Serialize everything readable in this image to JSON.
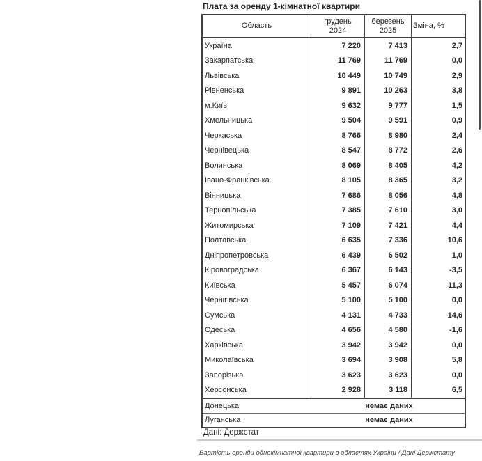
{
  "page": {
    "title": "Плата за оренду 1-кімнатної квартири",
    "source_note": "Дані: Держстат",
    "caption": "Вартість оренди однокімнатної квартири в областях України / Дані Держстату"
  },
  "colors": {
    "border": "#404040",
    "text": "#262626",
    "divider": "#c9c9c9",
    "scrollbar": "#4d4d4d"
  },
  "table": {
    "headers": {
      "region": "Область",
      "period1_line1": "грудень",
      "period1_line2": "2024",
      "period2_line1": "березень",
      "period2_line2": "2025",
      "change": "Зміна, %"
    },
    "rows": [
      {
        "region": "Україна",
        "dec_2024": "7 220",
        "mar_2025": "7 413",
        "change_pct": "2,7"
      },
      {
        "region": "Закарпатська",
        "dec_2024": "11 769",
        "mar_2025": "11 769",
        "change_pct": "0,0"
      },
      {
        "region": "Львівська",
        "dec_2024": "10 449",
        "mar_2025": "10 749",
        "change_pct": "2,9"
      },
      {
        "region": "Рівненська",
        "dec_2024": "9 891",
        "mar_2025": "10 263",
        "change_pct": "3,8"
      },
      {
        "region": "м.Київ",
        "dec_2024": "9 632",
        "mar_2025": "9 777",
        "change_pct": "1,5"
      },
      {
        "region": "Хмельницька",
        "dec_2024": "9 504",
        "mar_2025": "9 591",
        "change_pct": "0,9"
      },
      {
        "region": "Черкаська",
        "dec_2024": "8 766",
        "mar_2025": "8 980",
        "change_pct": "2,4"
      },
      {
        "region": "Чернівецька",
        "dec_2024": "8 547",
        "mar_2025": "8 772",
        "change_pct": "2,6"
      },
      {
        "region": "Волинська",
        "dec_2024": "8 069",
        "mar_2025": "8 405",
        "change_pct": "4,2"
      },
      {
        "region": "Івано-Франківська",
        "dec_2024": "8 105",
        "mar_2025": "8 365",
        "change_pct": "3,2"
      },
      {
        "region": "Вінницька",
        "dec_2024": "7 686",
        "mar_2025": "8 056",
        "change_pct": "4,8"
      },
      {
        "region": "Тернопільська",
        "dec_2024": "7 385",
        "mar_2025": "7 610",
        "change_pct": "3,0"
      },
      {
        "region": "Житомирська",
        "dec_2024": "7 109",
        "mar_2025": "7 421",
        "change_pct": "4,4"
      },
      {
        "region": "Полтавська",
        "dec_2024": "6 635",
        "mar_2025": "7 336",
        "change_pct": "10,6"
      },
      {
        "region": "Дніпропетровська",
        "dec_2024": "6 439",
        "mar_2025": "6 502",
        "change_pct": "1,0"
      },
      {
        "region": "Кіровоградська",
        "dec_2024": "6 367",
        "mar_2025": "6 143",
        "change_pct": "-3,5"
      },
      {
        "region": "Київська",
        "dec_2024": "5 457",
        "mar_2025": "6 074",
        "change_pct": "11,3"
      },
      {
        "region": "Чернігівська",
        "dec_2024": "5 100",
        "mar_2025": "5 100",
        "change_pct": "0,0"
      },
      {
        "region": "Сумська",
        "dec_2024": "4 131",
        "mar_2025": "4 733",
        "change_pct": "14,6"
      },
      {
        "region": "Одеська",
        "dec_2024": "4 656",
        "mar_2025": "4 580",
        "change_pct": "-1,6"
      },
      {
        "region": "Харківська",
        "dec_2024": "3 942",
        "mar_2025": "3 942",
        "change_pct": "0,0"
      },
      {
        "region": "Миколаївська",
        "dec_2024": "3 694",
        "mar_2025": "3 908",
        "change_pct": "5,8"
      },
      {
        "region": "Запорізька",
        "dec_2024": "3 623",
        "mar_2025": "3 623",
        "change_pct": "0,0"
      },
      {
        "region": "Херсонська",
        "dec_2024": "2 928",
        "mar_2025": "3 118",
        "change_pct": "6,5"
      }
    ],
    "no_data_rows": [
      {
        "region": "Донецька",
        "value": "немає даних"
      },
      {
        "region": "Луганська",
        "value": "немає даних"
      }
    ]
  }
}
